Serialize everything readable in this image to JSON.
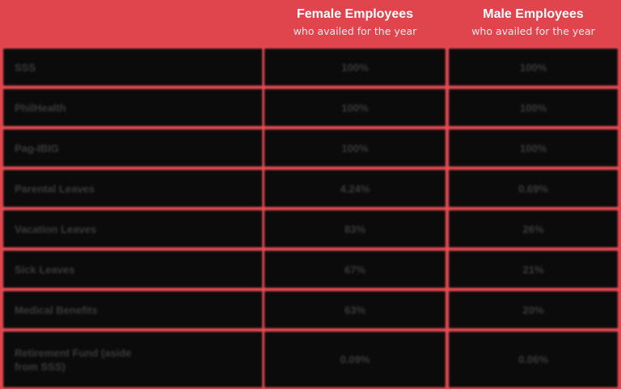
{
  "header": {
    "female": {
      "title": "Female Employees",
      "subtitle": "who availed for the year"
    },
    "male": {
      "title": "Male Employees",
      "subtitle": "who availed for the year"
    }
  },
  "rows": [
    {
      "label": "SSS",
      "female": "100%",
      "male": "100%"
    },
    {
      "label": "PhilHealth",
      "female": "100%",
      "male": "100%"
    },
    {
      "label": "Pag-IBIG",
      "female": "100%",
      "male": "100%"
    },
    {
      "label": "Parental Leaves",
      "female": "4.24%",
      "male": "0.69%"
    },
    {
      "label": "Vacation Leaves",
      "female": "83%",
      "male": "26%"
    },
    {
      "label": "Sick Leaves",
      "female": "67%",
      "male": "21%"
    },
    {
      "label": "Medical Benefits",
      "female": "63%",
      "male": "20%"
    },
    {
      "label": "Retirement Fund (aside from SSS)",
      "female": "0.09%",
      "male": "0.06%"
    }
  ]
}
